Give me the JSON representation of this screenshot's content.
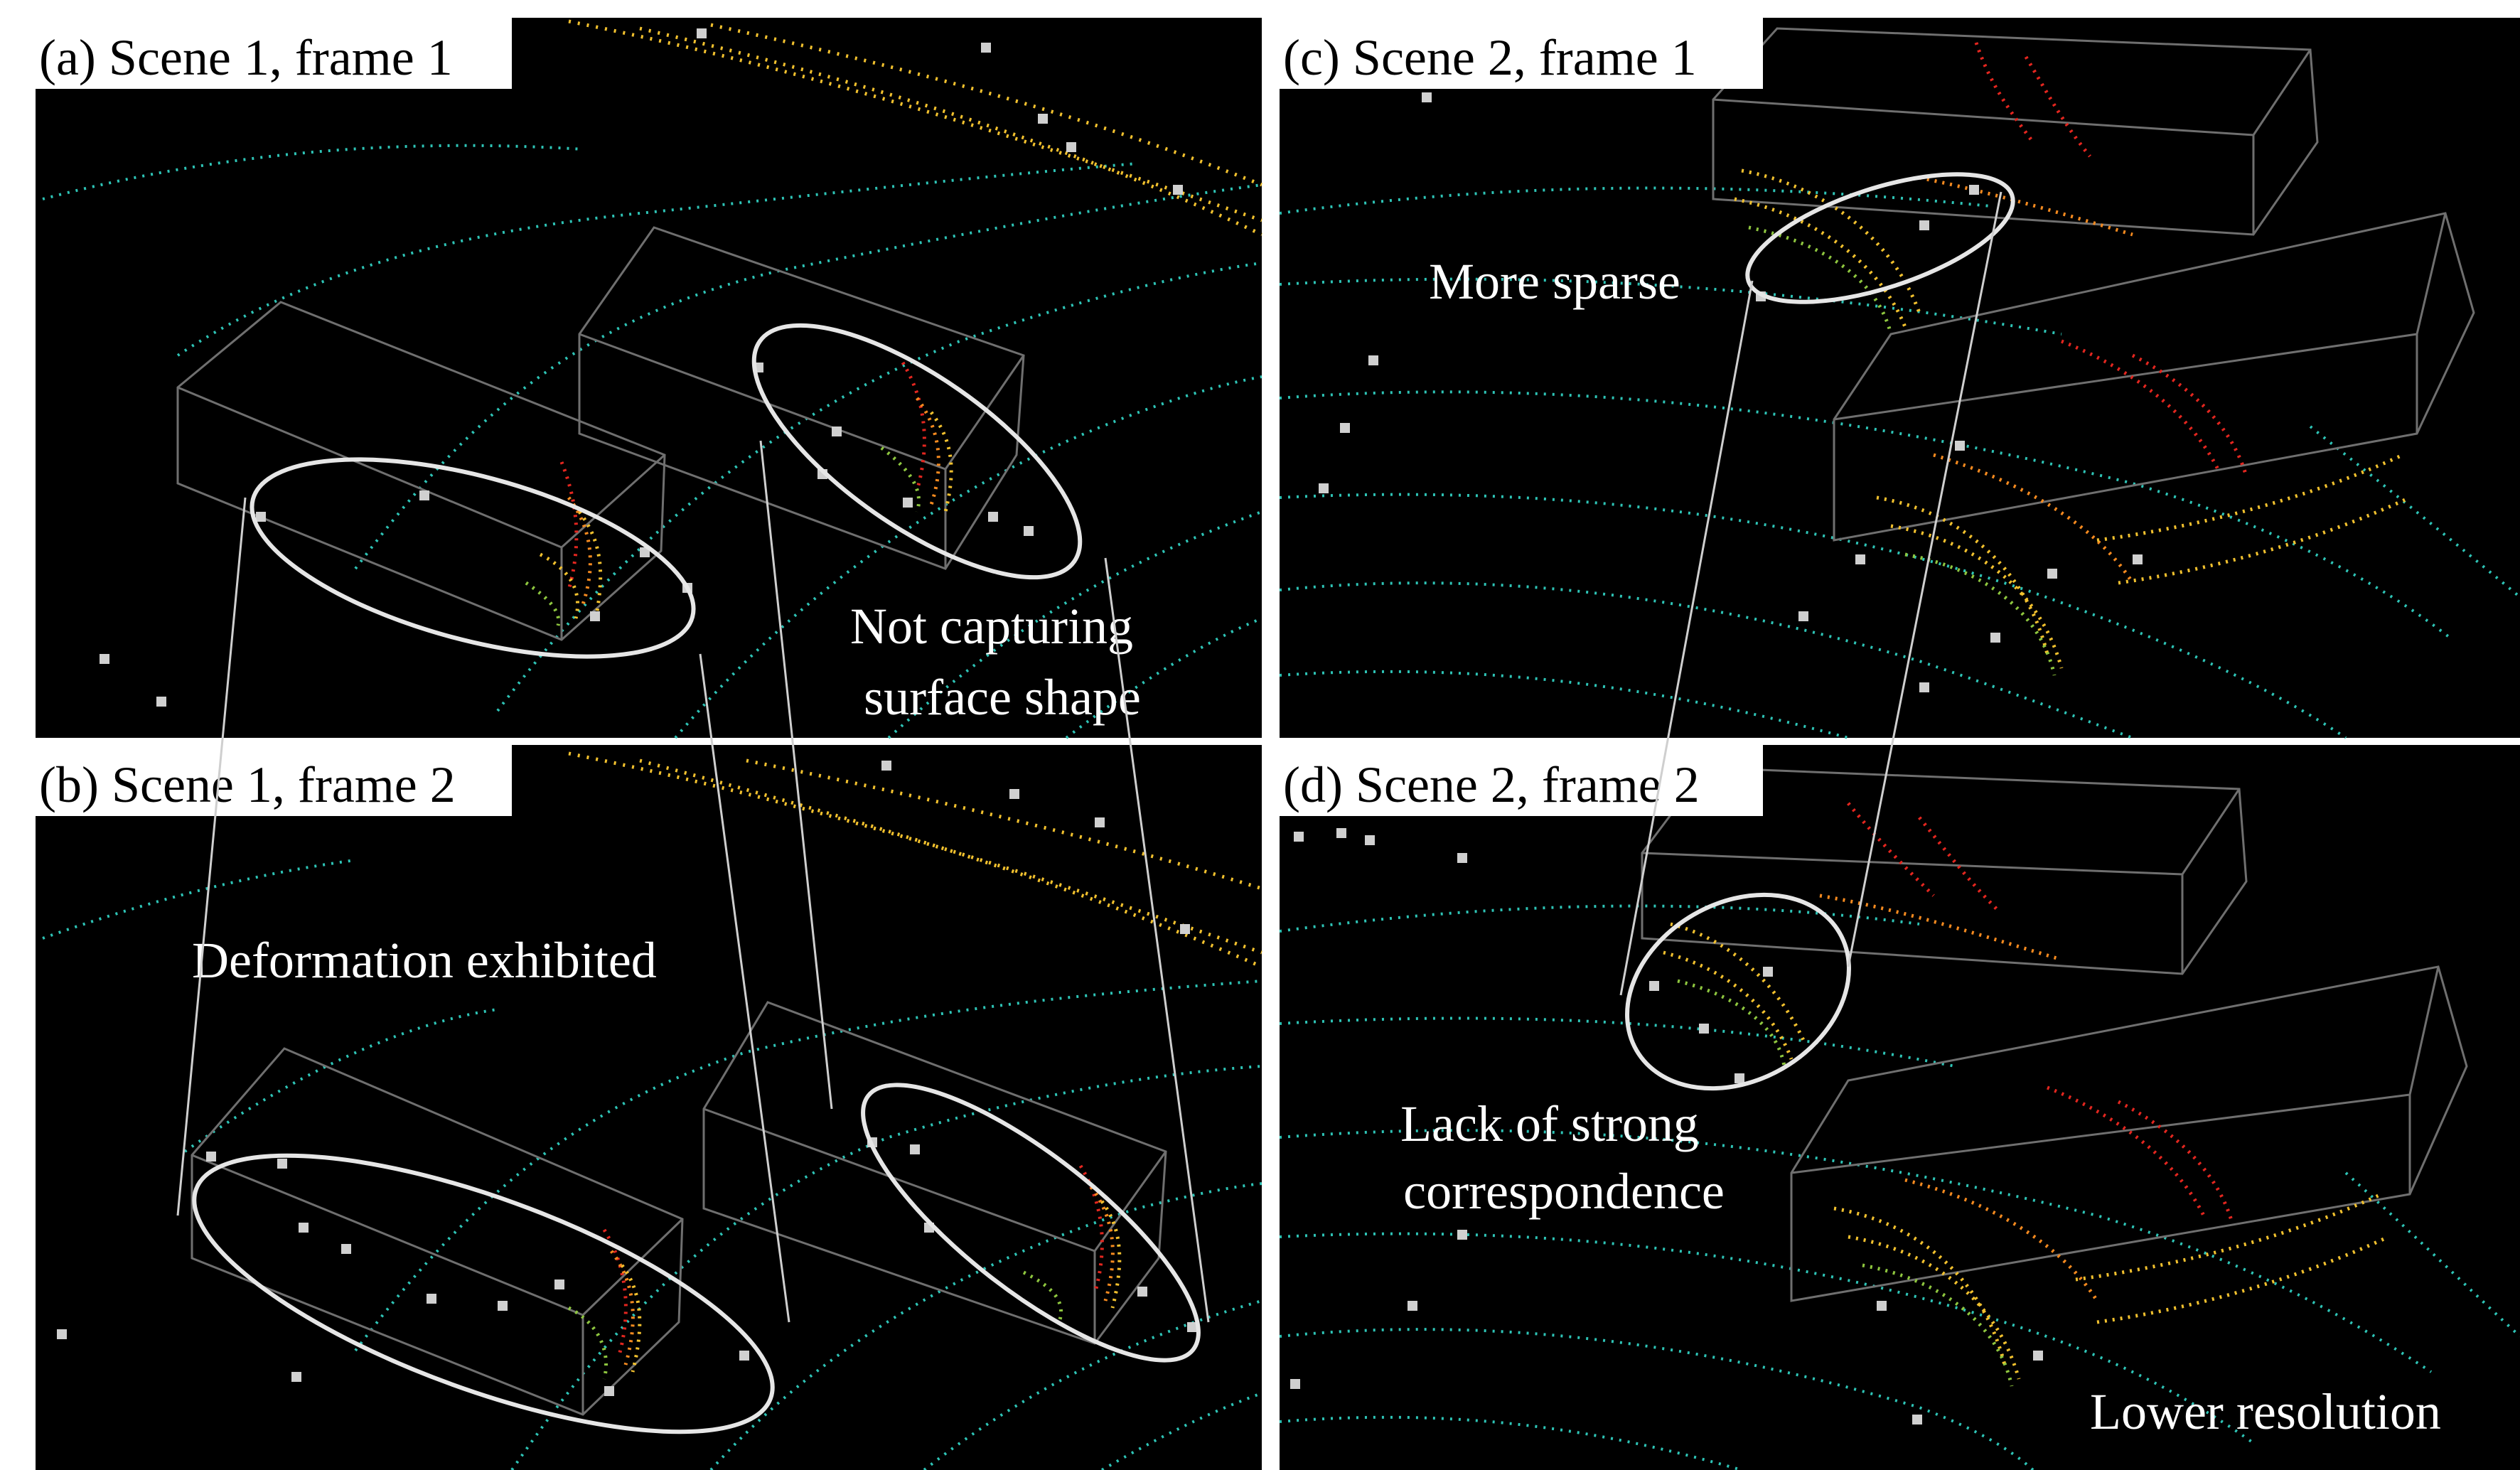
{
  "panels": [
    {
      "id": "a",
      "label": "(a) Scene 1, frame 1"
    },
    {
      "id": "b",
      "label": "(b) Scene 1, frame 2"
    },
    {
      "id": "c",
      "label": "(c) Scene 2, frame 1"
    },
    {
      "id": "d",
      "label": "(d) Scene 2, frame 2"
    }
  ],
  "annotations": {
    "not_capturing_line1": "Not capturing",
    "not_capturing_line2": "surface shape",
    "deformation": "Deformation exhibited",
    "more_sparse": "More sparse",
    "lack_line1": "Lack of strong",
    "lack_line2": "correspondence",
    "lower_resolution": "Lower resolution"
  },
  "colors": {
    "background": "#000000",
    "ground_points": "#2ec4b6",
    "near_points": "#f2c12e",
    "mid_points": "#f58a1f",
    "far_points": "#e3261f",
    "green_points": "#8ec63f",
    "gray_squares": "#d0d0d0",
    "ellipse": "#e6e6e6",
    "box_lines": "#6f6f6f"
  }
}
